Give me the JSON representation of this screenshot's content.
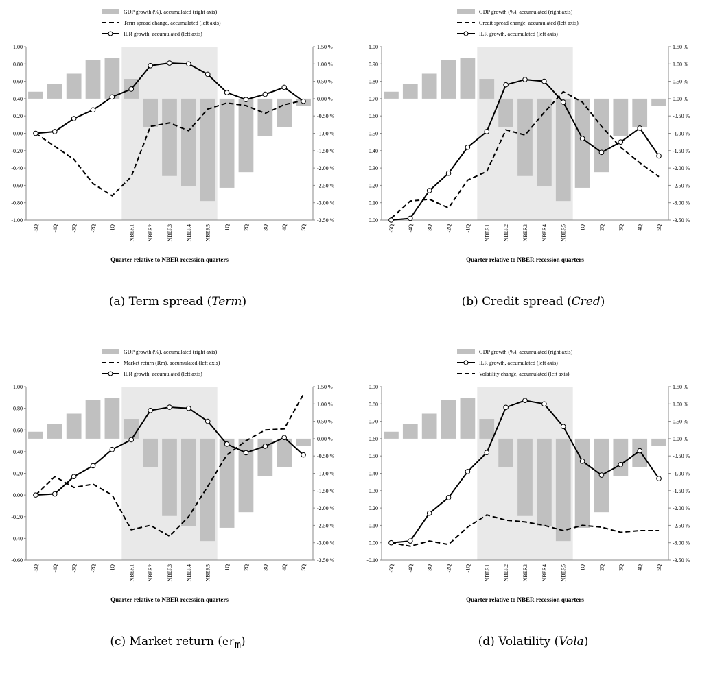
{
  "shared": {
    "categories": [
      "-5Q",
      "-4Q",
      "-3Q",
      "-2Q",
      "-1Q",
      "NBER1",
      "NBER2",
      "NBER3",
      "NBER4",
      "NBER5",
      "1Q",
      "2Q",
      "3Q",
      "4Q",
      "5Q"
    ],
    "xlabel": "Quarter relative to NBER recession quarters",
    "right_ticks": [
      "1.50 %",
      "1.00 %",
      "0.50 %",
      "0.00 %",
      "-0.50 %",
      "-1.00 %",
      "-1.50 %",
      "-2.00 %",
      "-2.50 %",
      "-3.00 %",
      "-3.50 %"
    ],
    "recession_shading": {
      "from": "NBER1",
      "to": "NBER5"
    },
    "colors": {
      "bars": "#c0c0c0",
      "shading": "#e9e9e9",
      "lines": "#000000"
    }
  },
  "captions": {
    "a": {
      "prefix": "(a)  Term spread (",
      "italic": "Term",
      "suffix": ")"
    },
    "b": {
      "prefix": "(b)  Credit spread (",
      "italic": "Cred",
      "suffix": ")"
    },
    "c": {
      "prefix": "(c)  Market return (",
      "mono": "er",
      "sub": "m",
      "suffix": ")"
    },
    "d": {
      "prefix": "(d)  Volatility (",
      "italic": "Vola",
      "suffix": ")"
    }
  },
  "chart_data": [
    {
      "id": "a",
      "type": "bar+line",
      "ylim_left": [
        -1.0,
        1.0
      ],
      "left_ticks": [
        "1.00",
        "0.80",
        "0.60",
        "0.40",
        "0.20",
        "0.00",
        "-0.20",
        "-0.40",
        "-0.60",
        "-0.80",
        "-1.00"
      ],
      "ylim_right": [
        -3.5,
        1.5
      ],
      "right_zero_left_value": 0.4,
      "legend": [
        {
          "kind": "bar",
          "label": "GDP growth (%), accumulated (right axis)"
        },
        {
          "kind": "dash",
          "label": "Term spread change, accumulated (left axis)"
        },
        {
          "kind": "marker",
          "label": "ILR growth, accumulated (left axis)"
        }
      ],
      "bars": {
        "name": "GDP growth (%), accumulated (right axis)",
        "values": [
          0.2,
          0.42,
          0.72,
          1.12,
          1.18,
          0.57,
          -0.83,
          -2.23,
          -2.52,
          -2.95,
          -2.57,
          -2.12,
          -1.08,
          -0.82,
          -0.2
        ]
      },
      "dash": {
        "name": "Term spread change, accumulated (left axis)",
        "values": [
          0.0,
          -0.15,
          -0.3,
          -0.58,
          -0.72,
          -0.5,
          0.08,
          0.12,
          0.03,
          0.28,
          0.35,
          0.32,
          0.23,
          0.33,
          0.38
        ]
      },
      "marker": {
        "name": "ILR growth, accumulated (left axis)",
        "values": [
          0.0,
          0.02,
          0.17,
          0.27,
          0.42,
          0.51,
          0.78,
          0.81,
          0.8,
          0.68,
          0.47,
          0.39,
          0.45,
          0.53,
          0.37
        ]
      }
    },
    {
      "id": "b",
      "type": "bar+line",
      "ylim_left": [
        0.0,
        1.0
      ],
      "left_ticks": [
        "1.00",
        "0.90",
        "0.80",
        "0.70",
        "0.60",
        "0.50",
        "0.40",
        "0.30",
        "0.20",
        "0.10",
        "0.00"
      ],
      "ylim_right": [
        -3.5,
        1.5
      ],
      "right_zero_left_value": 0.7,
      "legend": [
        {
          "kind": "bar",
          "label": "GDP growth (%), accumulated (right axis)"
        },
        {
          "kind": "dash",
          "label": "Credit spread change, accumulated (left axis)"
        },
        {
          "kind": "marker",
          "label": "ILR growth, accumulated (left axis)"
        }
      ],
      "bars": {
        "name": "GDP growth (%), accumulated (right axis)",
        "values": [
          0.2,
          0.42,
          0.72,
          1.12,
          1.18,
          0.57,
          -0.83,
          -2.23,
          -2.52,
          -2.95,
          -2.57,
          -2.12,
          -1.08,
          -0.82,
          -0.2
        ]
      },
      "dash": {
        "name": "Credit spread change, accumulated (left axis)",
        "values": [
          0.01,
          0.11,
          0.12,
          0.07,
          0.23,
          0.28,
          0.52,
          0.49,
          0.62,
          0.74,
          0.68,
          0.54,
          0.42,
          0.33,
          0.25
        ]
      },
      "marker": {
        "name": "ILR growth, accumulated (left axis)",
        "values": [
          0.0,
          0.01,
          0.17,
          0.27,
          0.42,
          0.51,
          0.78,
          0.81,
          0.8,
          0.68,
          0.47,
          0.39,
          0.45,
          0.53,
          0.37
        ]
      }
    },
    {
      "id": "c",
      "type": "bar+line",
      "ylim_left": [
        -0.6,
        1.0
      ],
      "left_ticks": [
        "1.00",
        "0.80",
        "0.60",
        "0.40",
        "0.20",
        "0.00",
        "-0.20",
        "-0.40",
        "-0.60"
      ],
      "ylim_right": [
        -3.5,
        1.5
      ],
      "right_zero_left_value": 0.52,
      "legend": [
        {
          "kind": "bar",
          "label": "GDP growth (%), accumulated (right axis)"
        },
        {
          "kind": "dash",
          "label": "Market return (Rm), accumulated (left axis)"
        },
        {
          "kind": "marker",
          "label": "ILR growth, accumulated (left axis)"
        }
      ],
      "bars": {
        "name": "GDP growth (%), accumulated (right axis)",
        "values": [
          0.2,
          0.42,
          0.72,
          1.12,
          1.18,
          0.57,
          -0.83,
          -2.23,
          -2.52,
          -2.95,
          -2.57,
          -2.12,
          -1.08,
          -0.82,
          -0.2
        ]
      },
      "dash": {
        "name": "Market return (Rm), accumulated (left axis)",
        "values": [
          0.0,
          0.17,
          0.07,
          0.1,
          0.0,
          -0.32,
          -0.28,
          -0.38,
          -0.2,
          0.08,
          0.37,
          0.5,
          0.6,
          0.61,
          0.93
        ]
      },
      "marker": {
        "name": "ILR growth, accumulated (left axis)",
        "values": [
          0.0,
          0.01,
          0.17,
          0.27,
          0.42,
          0.51,
          0.78,
          0.81,
          0.8,
          0.68,
          0.47,
          0.39,
          0.45,
          0.53,
          0.37
        ]
      }
    },
    {
      "id": "d",
      "type": "bar+line",
      "ylim_left": [
        -0.1,
        0.9
      ],
      "left_ticks": [
        "0.90",
        "0.80",
        "0.70",
        "0.60",
        "0.50",
        "0.40",
        "0.30",
        "0.20",
        "0.10",
        "0.00",
        "-0.10"
      ],
      "ylim_right": [
        -3.5,
        1.5
      ],
      "right_zero_left_value": 0.6,
      "legend": [
        {
          "kind": "bar",
          "label": "GDP growth (%), accumulated (right axis)"
        },
        {
          "kind": "marker",
          "label": "ILR growth, accumulated (left axis)"
        },
        {
          "kind": "dash",
          "label": "Volatility change, accumulated (left axis)"
        }
      ],
      "bars": {
        "name": "GDP growth (%), accumulated (right axis)",
        "values": [
          0.2,
          0.42,
          0.72,
          1.12,
          1.18,
          0.57,
          -0.83,
          -2.23,
          -2.52,
          -2.95,
          -2.57,
          -2.12,
          -1.08,
          -0.82,
          -0.2
        ]
      },
      "dash": {
        "name": "Volatility change, accumulated (left axis)",
        "values": [
          0.0,
          -0.02,
          0.01,
          -0.01,
          0.09,
          0.16,
          0.13,
          0.12,
          0.1,
          0.07,
          0.1,
          0.09,
          0.06,
          0.07,
          0.07
        ]
      },
      "marker": {
        "name": "ILR growth, accumulated (left axis)",
        "values": [
          0.0,
          0.01,
          0.17,
          0.26,
          0.41,
          0.52,
          0.78,
          0.82,
          0.8,
          0.67,
          0.47,
          0.39,
          0.45,
          0.53,
          0.37
        ]
      }
    }
  ]
}
